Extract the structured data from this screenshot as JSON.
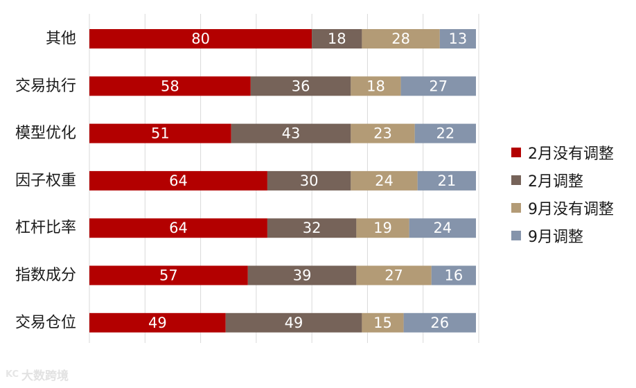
{
  "chart_data": {
    "type": "bar",
    "orientation": "horizontal",
    "stacked": true,
    "categories": [
      "其他",
      "交易执行",
      "模型优化",
      "因子权重",
      "杠杆比率",
      "指数成分",
      "交易仓位"
    ],
    "series": [
      {
        "name": "2月没有调整",
        "color": "#b30000",
        "values": [
          80,
          58,
          51,
          64,
          64,
          57,
          49
        ]
      },
      {
        "name": "2月调整",
        "color": "#766359",
        "values": [
          18,
          36,
          43,
          30,
          32,
          39,
          49
        ]
      },
      {
        "name": "9月没有调整",
        "color": "#b39b76",
        "values": [
          28,
          18,
          23,
          24,
          19,
          27,
          15
        ]
      },
      {
        "name": "9月调整",
        "color": "#8594ab",
        "values": [
          13,
          27,
          22,
          21,
          24,
          16,
          26
        ]
      }
    ],
    "xlim": [
      0,
      140
    ],
    "grid": true,
    "legend_position": "right"
  },
  "watermark": {
    "text": "大数跨境",
    "logo_text": "KC"
  }
}
